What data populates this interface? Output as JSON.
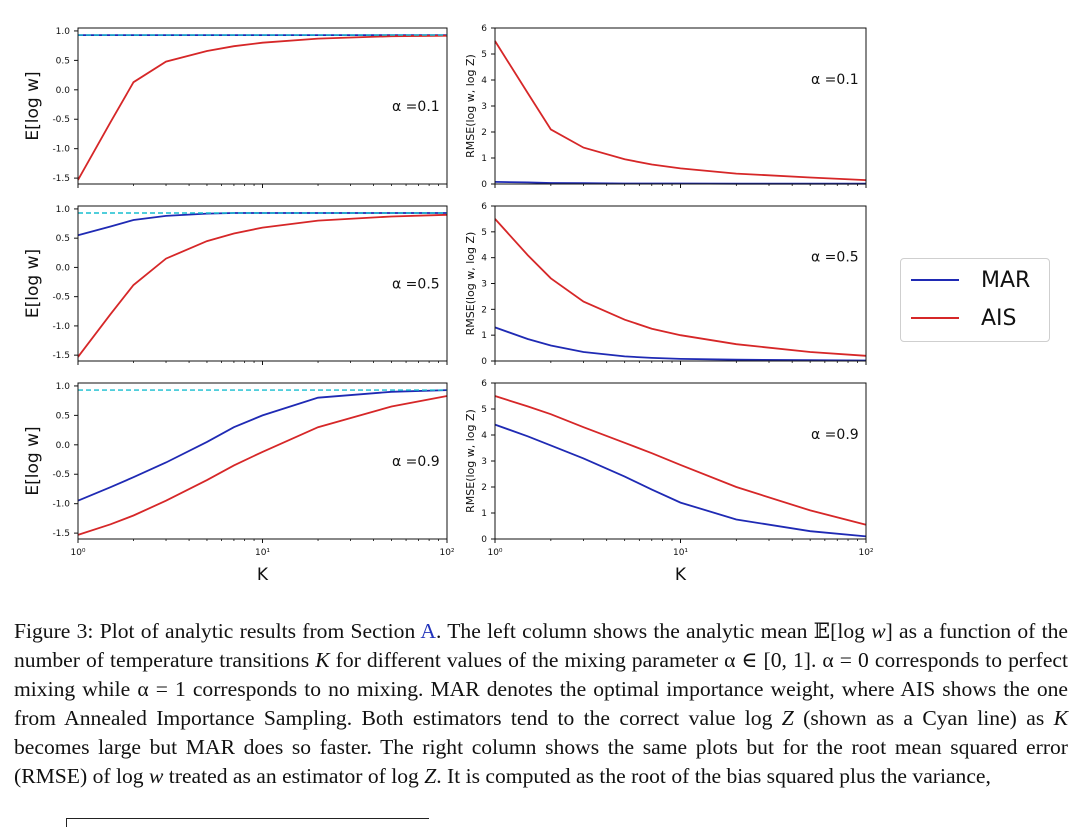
{
  "figure": {
    "x_label": "K",
    "x_ticks": [
      "10⁰",
      "10¹",
      "10²"
    ],
    "left_ylabel": "E[log w]",
    "right_ylabel": "RMSE(log w, log Z)",
    "left_yticks": [
      "1.0",
      "0.5",
      "0.0",
      "-0.5",
      "-1.0",
      "-1.5"
    ],
    "right_yticks": [
      "6",
      "5",
      "4",
      "3",
      "2",
      "1",
      "0"
    ],
    "alpha_labels": [
      "α =0.1",
      "α =0.5",
      "α =0.9"
    ]
  },
  "legend": {
    "items": [
      {
        "label": "MAR",
        "color": "#1f2ab4"
      },
      {
        "label": "AIS",
        "color": "#d62728"
      }
    ]
  },
  "colors": {
    "mar": "#1f2ab4",
    "ais": "#d62728",
    "true_value": "#17becf"
  },
  "chart_data": [
    {
      "type": "line",
      "title": "α =0.1",
      "xlabel": "K",
      "ylabel": "E[log w]",
      "xscale": "log",
      "xlim": [
        1,
        100
      ],
      "ylim": [
        -1.6,
        1.05
      ],
      "x": [
        1,
        1.5,
        2,
        3,
        5,
        7,
        10,
        20,
        50,
        100
      ],
      "series": [
        {
          "name": "MAR",
          "values": [
            0.93,
            0.93,
            0.93,
            0.93,
            0.93,
            0.93,
            0.93,
            0.93,
            0.93,
            0.93
          ]
        },
        {
          "name": "AIS",
          "values": [
            -1.53,
            -0.55,
            0.13,
            0.48,
            0.66,
            0.74,
            0.8,
            0.87,
            0.91,
            0.92
          ]
        },
        {
          "name": "log Z",
          "values": [
            0.93,
            0.93,
            0.93,
            0.93,
            0.93,
            0.93,
            0.93,
            0.93,
            0.93,
            0.93
          ]
        }
      ]
    },
    {
      "type": "line",
      "title": "α =0.1",
      "xlabel": "K",
      "ylabel": "RMSE(log w, log Z)",
      "xscale": "log",
      "xlim": [
        1,
        100
      ],
      "ylim": [
        0,
        6
      ],
      "x": [
        1,
        1.5,
        2,
        3,
        5,
        7,
        10,
        20,
        50,
        100
      ],
      "series": [
        {
          "name": "MAR",
          "values": [
            0.08,
            0.06,
            0.04,
            0.03,
            0.02,
            0.02,
            0.02,
            0.01,
            0.01,
            0.01
          ]
        },
        {
          "name": "AIS",
          "values": [
            5.5,
            3.5,
            2.1,
            1.4,
            0.95,
            0.75,
            0.6,
            0.4,
            0.25,
            0.15
          ]
        }
      ]
    },
    {
      "type": "line",
      "title": "α =0.5",
      "xlabel": "K",
      "ylabel": "E[log w]",
      "xscale": "log",
      "xlim": [
        1,
        100
      ],
      "ylim": [
        -1.6,
        1.05
      ],
      "x": [
        1,
        1.5,
        2,
        3,
        5,
        7,
        10,
        20,
        50,
        100
      ],
      "series": [
        {
          "name": "MAR",
          "values": [
            0.55,
            0.7,
            0.81,
            0.88,
            0.92,
            0.93,
            0.93,
            0.93,
            0.93,
            0.93
          ]
        },
        {
          "name": "AIS",
          "values": [
            -1.53,
            -0.8,
            -0.3,
            0.15,
            0.45,
            0.58,
            0.68,
            0.8,
            0.87,
            0.9
          ]
        },
        {
          "name": "log Z",
          "values": [
            0.93,
            0.93,
            0.93,
            0.93,
            0.93,
            0.93,
            0.93,
            0.93,
            0.93,
            0.93
          ]
        }
      ]
    },
    {
      "type": "line",
      "title": "α =0.5",
      "xlabel": "K",
      "ylabel": "RMSE(log w, log Z)",
      "xscale": "log",
      "xlim": [
        1,
        100
      ],
      "ylim": [
        0,
        6
      ],
      "x": [
        1,
        1.5,
        2,
        3,
        5,
        7,
        10,
        20,
        50,
        100
      ],
      "series": [
        {
          "name": "MAR",
          "values": [
            1.3,
            0.85,
            0.6,
            0.35,
            0.18,
            0.12,
            0.08,
            0.05,
            0.03,
            0.02
          ]
        },
        {
          "name": "AIS",
          "values": [
            5.5,
            4.1,
            3.2,
            2.3,
            1.6,
            1.25,
            1.0,
            0.65,
            0.35,
            0.2
          ]
        }
      ]
    },
    {
      "type": "line",
      "title": "α =0.9",
      "xlabel": "K",
      "ylabel": "E[log w]",
      "xscale": "log",
      "xlim": [
        1,
        100
      ],
      "ylim": [
        -1.6,
        1.05
      ],
      "x": [
        1,
        1.5,
        2,
        3,
        5,
        7,
        10,
        20,
        50,
        100
      ],
      "series": [
        {
          "name": "MAR",
          "values": [
            -0.95,
            -0.72,
            -0.55,
            -0.3,
            0.05,
            0.3,
            0.5,
            0.8,
            0.9,
            0.93
          ]
        },
        {
          "name": "AIS",
          "values": [
            -1.53,
            -1.35,
            -1.2,
            -0.95,
            -0.6,
            -0.35,
            -0.12,
            0.3,
            0.65,
            0.83
          ]
        },
        {
          "name": "log Z",
          "values": [
            0.93,
            0.93,
            0.93,
            0.93,
            0.93,
            0.93,
            0.93,
            0.93,
            0.93,
            0.93
          ]
        }
      ]
    },
    {
      "type": "line",
      "title": "α =0.9",
      "xlabel": "K",
      "ylabel": "RMSE(log w, log Z)",
      "xscale": "log",
      "xlim": [
        1,
        100
      ],
      "ylim": [
        0,
        6
      ],
      "x": [
        1,
        1.5,
        2,
        3,
        5,
        7,
        10,
        20,
        50,
        100
      ],
      "series": [
        {
          "name": "MAR",
          "values": [
            4.4,
            3.95,
            3.6,
            3.1,
            2.4,
            1.9,
            1.4,
            0.75,
            0.3,
            0.1
          ]
        },
        {
          "name": "AIS",
          "values": [
            5.5,
            5.1,
            4.8,
            4.3,
            3.7,
            3.3,
            2.85,
            2.0,
            1.1,
            0.55
          ]
        }
      ]
    }
  ],
  "caption": {
    "intro": "Figure 3: Plot of analytic results from Section ",
    "section_ref": "A",
    "part1": ". The left column shows the analytic mean 𝔼[log ",
    "w1": "w",
    "part2": "] as a function of the number of temperature transitions ",
    "K1": "K",
    "part3": " for different values of the mixing parameter ",
    "part4": "α ∈ [0, 1]. α = 0 corresponds to perfect mixing while α = 1 corresponds to no mixing. MAR denotes the optimal importance weight, where AIS shows the one from Annealed Importance Sampling. Both estimators tend to the correct value log ",
    "Z1": "Z",
    "part5": " (shown as a Cyan line) as ",
    "K2": "K",
    "part6": " becomes large but MAR does so faster. The right column shows the same plots but for the root mean squared error (RMSE) of log ",
    "w2": "w",
    "part7": " treated as an estimator of log ",
    "Z2": "Z",
    "part8": ". It is computed as the root of the bias squared plus the variance,"
  }
}
